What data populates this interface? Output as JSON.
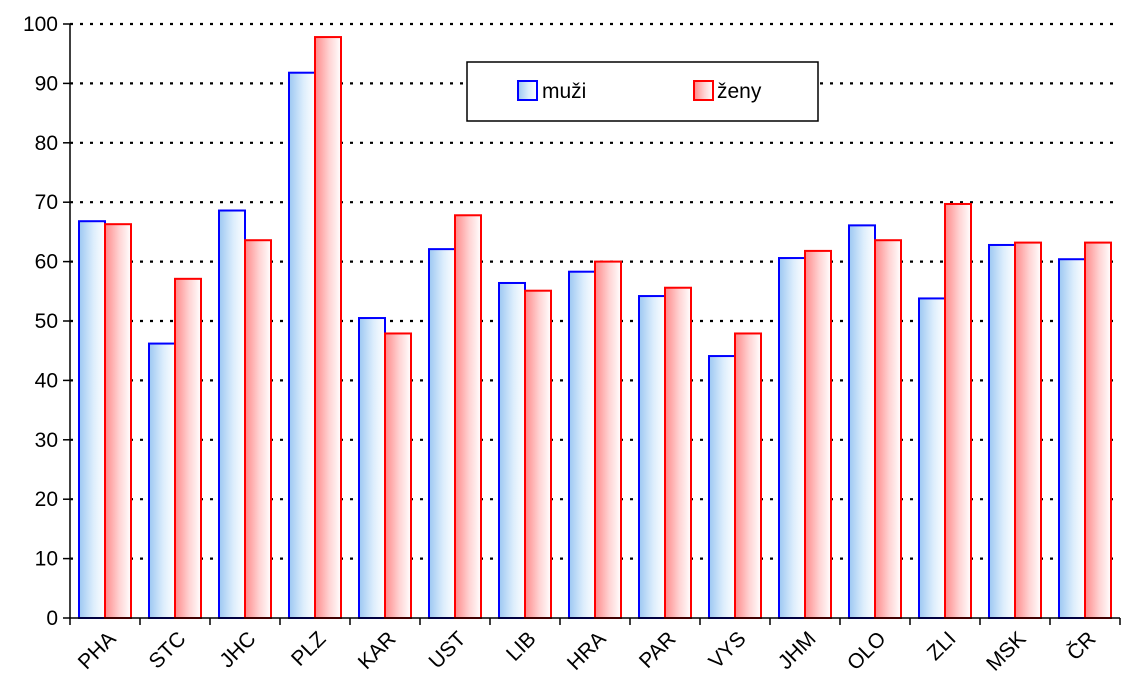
{
  "chart_data": {
    "type": "bar",
    "title": "",
    "xlabel": "",
    "ylabel": "",
    "categories": [
      "PHA",
      "STC",
      "JHC",
      "PLZ",
      "KAR",
      "UST",
      "LIB",
      "HRA",
      "PAR",
      "VYS",
      "JHM",
      "OLO",
      "ZLI",
      "MSK",
      "ČR"
    ],
    "series": [
      {
        "name": "muži",
        "color": "#0000ff",
        "values": [
          66.8,
          46.2,
          68.6,
          91.8,
          50.5,
          62.1,
          56.4,
          58.3,
          54.2,
          44.1,
          60.6,
          66.1,
          53.8,
          62.8,
          60.4
        ]
      },
      {
        "name": "ženy",
        "color": "#ff0000",
        "values": [
          66.3,
          57.1,
          63.6,
          97.8,
          47.9,
          67.8,
          55.1,
          60.0,
          55.6,
          47.9,
          61.8,
          63.6,
          69.7,
          63.2,
          63.2
        ]
      }
    ],
    "ylim": [
      0,
      100
    ],
    "yticks": [
      0,
      10,
      20,
      30,
      40,
      50,
      60,
      70,
      80,
      90,
      100
    ],
    "grid": "dotted horizontal",
    "legend": "top-center"
  }
}
